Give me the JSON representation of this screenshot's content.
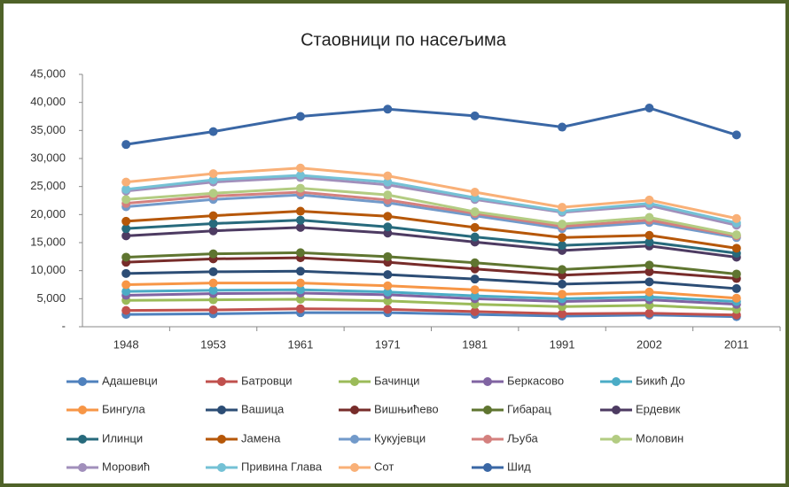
{
  "chart_data": {
    "type": "line",
    "stacked": true,
    "title": "Стaовници по насељима",
    "categories": [
      "1948",
      "1953",
      "1961",
      "1971",
      "1981",
      "1991",
      "2002",
      "2011"
    ],
    "ylim": [
      0,
      45000
    ],
    "yticks": [
      {
        "value": 0,
        "label": "-"
      },
      {
        "value": 5000,
        "label": "5,000"
      },
      {
        "value": 10000,
        "label": "10,000"
      },
      {
        "value": 15000,
        "label": "15,000"
      },
      {
        "value": 20000,
        "label": "20,000"
      },
      {
        "value": 25000,
        "label": "25,000"
      },
      {
        "value": 30000,
        "label": "30,000"
      },
      {
        "value": 35000,
        "label": "35,000"
      },
      {
        "value": 40000,
        "label": "40,000"
      },
      {
        "value": 45000,
        "label": "45,000"
      }
    ],
    "grid": false,
    "legend": "bottom",
    "series": [
      {
        "name": "Адашевци",
        "color": "#4f81bd",
        "values": [
          2200,
          2300,
          2500,
          2500,
          2200,
          1900,
          2100,
          1800
        ]
      },
      {
        "name": "Батровци",
        "color": "#c0504d",
        "values": [
          700,
          700,
          700,
          600,
          500,
          400,
          300,
          300
        ]
      },
      {
        "name": "Бачинци",
        "color": "#9bbb59",
        "values": [
          1800,
          1800,
          1700,
          1500,
          1300,
          1300,
          1400,
          1000
        ]
      },
      {
        "name": "Беркасово",
        "color": "#8064a2",
        "values": [
          900,
          1100,
          1100,
          1100,
          1000,
          900,
          1000,
          900
        ]
      },
      {
        "name": "Бикић До",
        "color": "#4bacc6",
        "values": [
          700,
          600,
          600,
          500,
          500,
          500,
          500,
          500
        ]
      },
      {
        "name": "Бингула",
        "color": "#f79646",
        "values": [
          1200,
          1300,
          1200,
          1100,
          1100,
          800,
          900,
          600
        ]
      },
      {
        "name": "Вашица",
        "color": "#2c4d75",
        "values": [
          2000,
          2000,
          2100,
          2000,
          1900,
          1800,
          1800,
          1700
        ]
      },
      {
        "name": "Вишњићево",
        "color": "#772c2a",
        "values": [
          2000,
          2300,
          2400,
          2200,
          1800,
          1600,
          1800,
          1800
        ]
      },
      {
        "name": "Гибарац",
        "color": "#5f7530",
        "values": [
          900,
          900,
          900,
          1000,
          1100,
          1000,
          1200,
          800
        ]
      },
      {
        "name": "Ердевик",
        "color": "#4d3b62",
        "values": [
          3800,
          4100,
          4500,
          4200,
          3700,
          3400,
          3400,
          3000
        ]
      },
      {
        "name": "Илинци",
        "color": "#276a7c",
        "values": [
          1300,
          1300,
          1300,
          1100,
          900,
          900,
          700,
          700
        ]
      },
      {
        "name": "Јамена",
        "color": "#b65708",
        "values": [
          1300,
          1400,
          1600,
          1900,
          1700,
          1400,
          1200,
          900
        ]
      },
      {
        "name": "Кукујевци",
        "color": "#729aca",
        "values": [
          2600,
          2900,
          2900,
          2400,
          2100,
          1600,
          2300,
          1900
        ]
      },
      {
        "name": "Љуба",
        "color": "#d4807e",
        "values": [
          600,
          600,
          500,
          500,
          400,
          400,
          400,
          300
        ]
      },
      {
        "name": "Моловин",
        "color": "#b3cc82",
        "values": [
          700,
          500,
          700,
          900,
          300,
          400,
          500,
          200
        ]
      },
      {
        "name": "Моровић",
        "color": "#a18fbb",
        "values": [
          1500,
          2000,
          1900,
          1800,
          2200,
          2100,
          2100,
          1700
        ]
      },
      {
        "name": "Привина Глава",
        "color": "#74c1d5",
        "values": [
          300,
          400,
          400,
          500,
          300,
          200,
          400,
          400
        ]
      },
      {
        "name": "Сот",
        "color": "#f9b077",
        "values": [
          1300,
          1100,
          1300,
          1100,
          1000,
          700,
          600,
          800
        ]
      },
      {
        "name": "Шид",
        "color": "#3a67a5",
        "values": [
          6700,
          7500,
          9200,
          11900,
          13600,
          14300,
          16400,
          14900
        ]
      }
    ]
  }
}
